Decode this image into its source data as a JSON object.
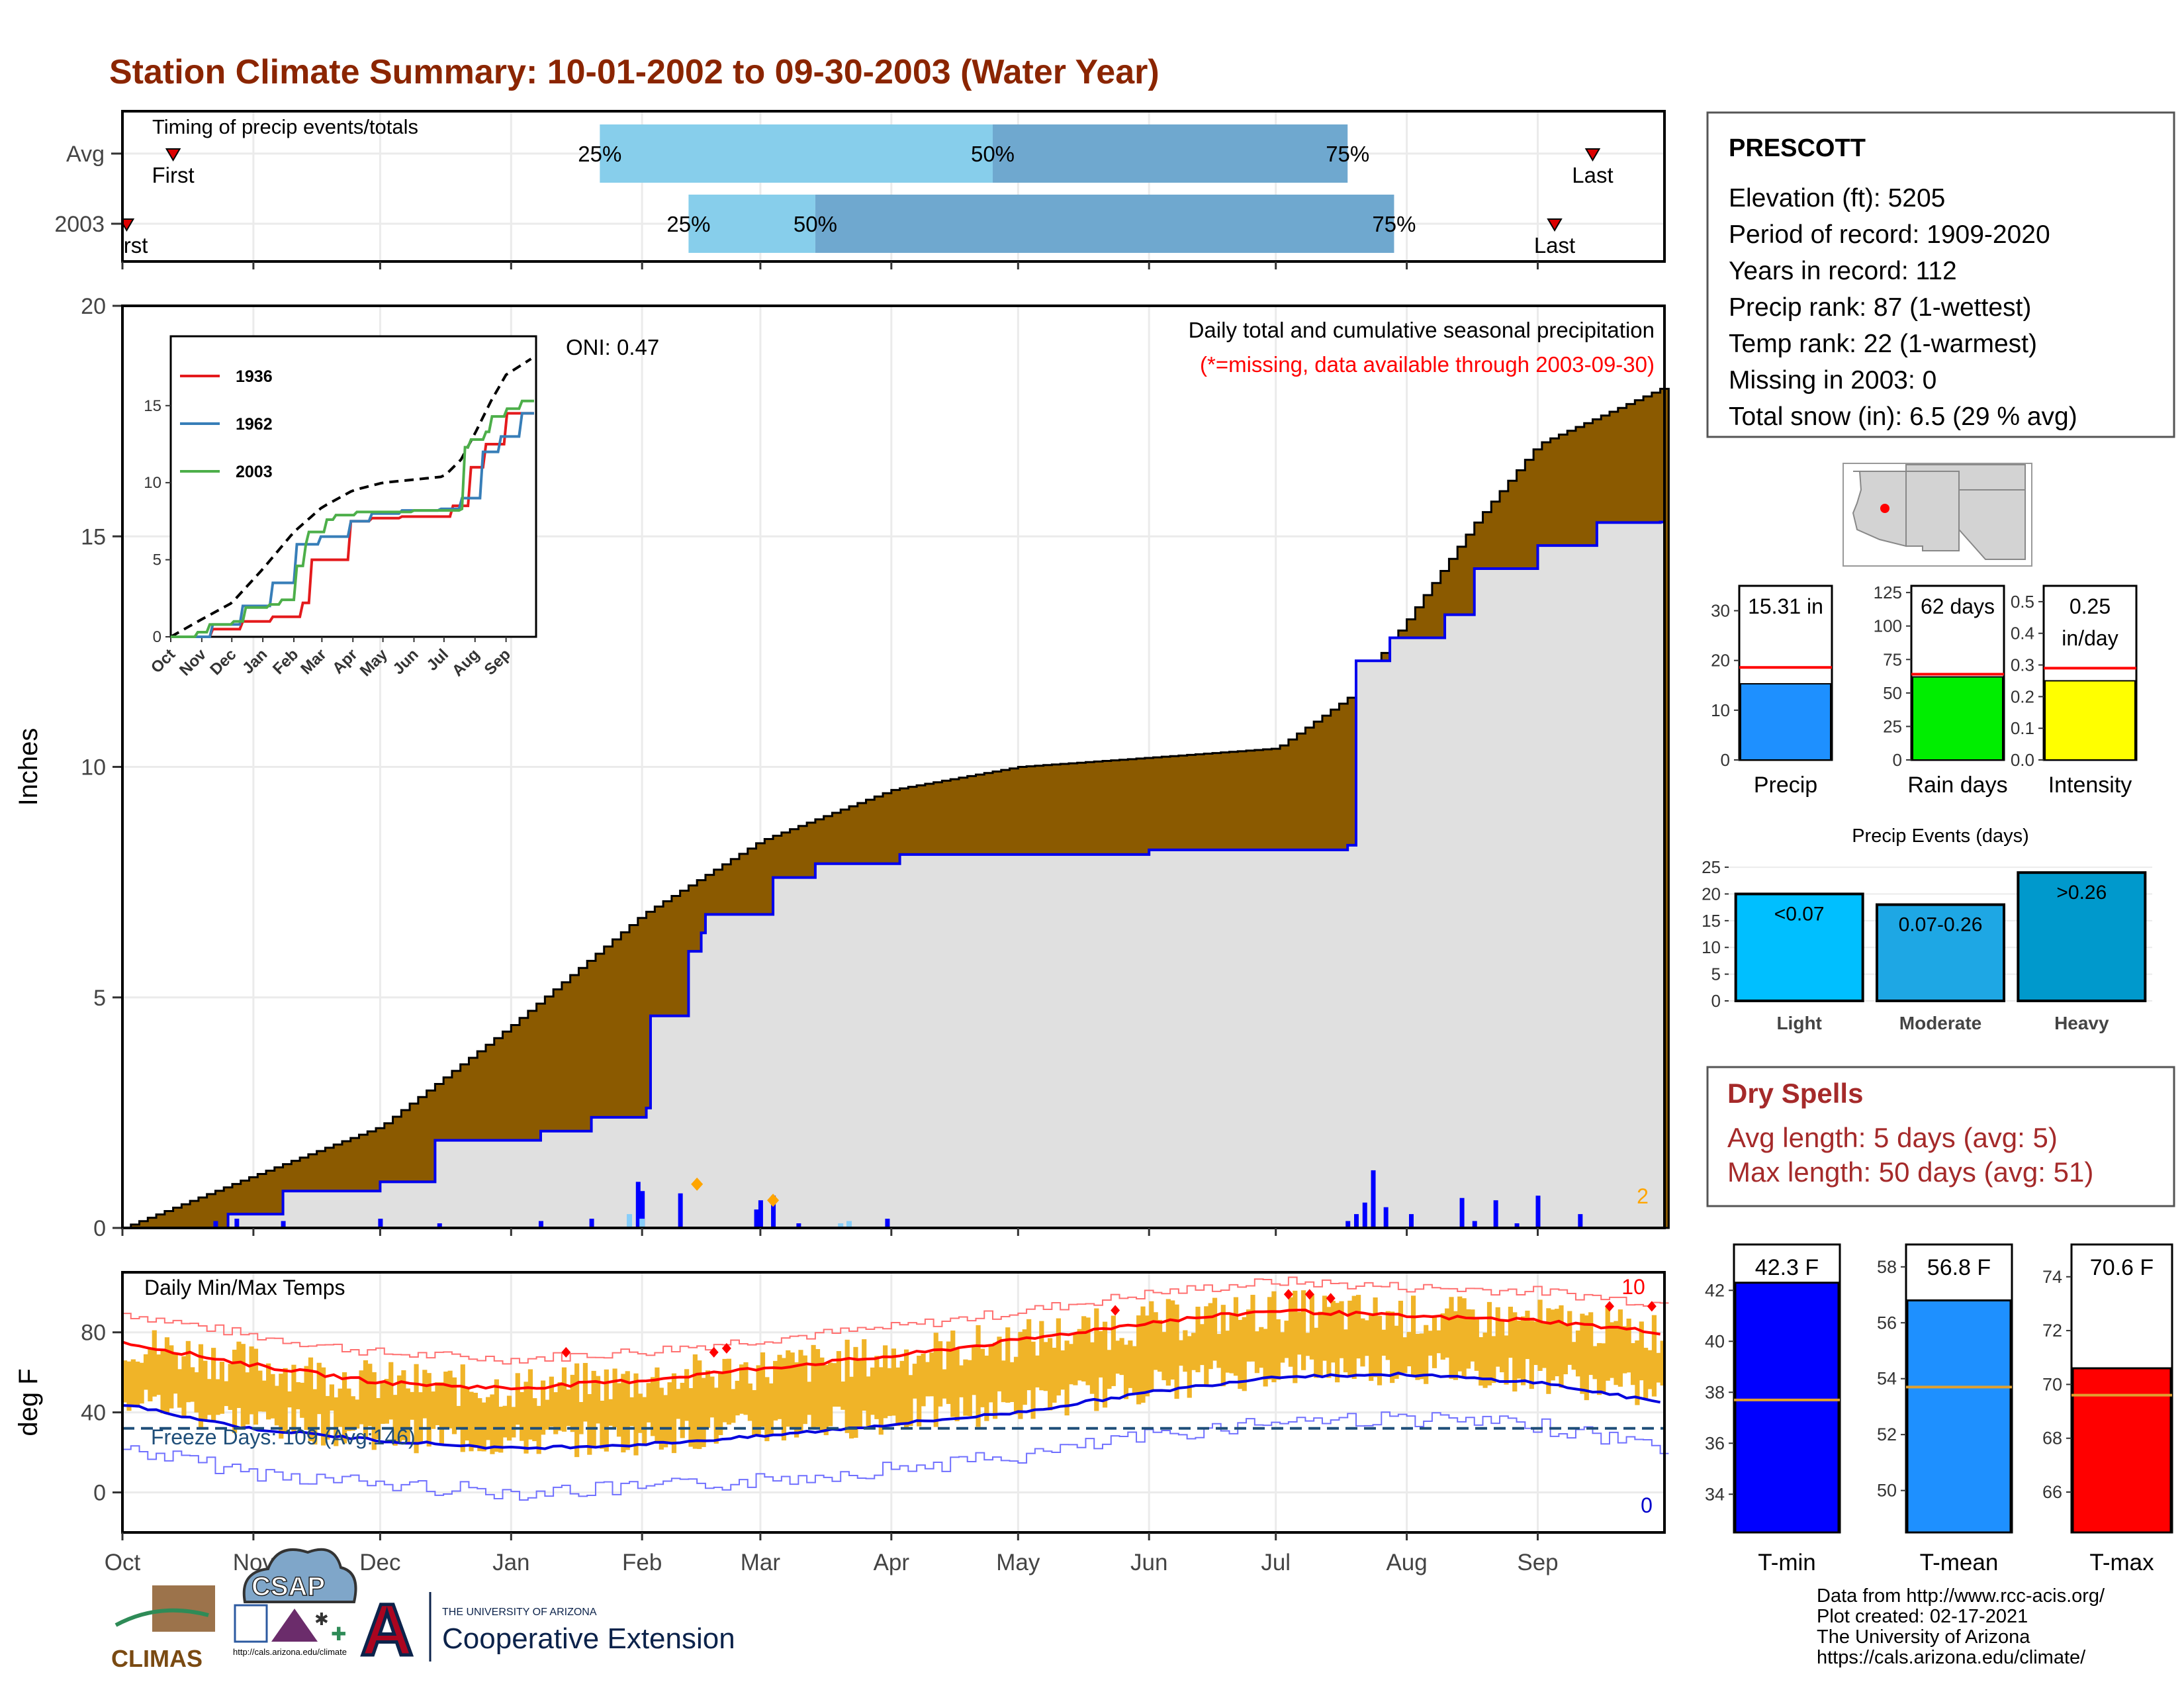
{
  "title": "Station Climate Summary: 10-01-2002 to 09-30-2003 (Water Year)",
  "colors": {
    "title": "#8B2500",
    "brown": "#8B5A00",
    "cumfill": "#E0E0E0",
    "cumline": "#0000EE",
    "light_blue": "#87CEEB",
    "mid_blue": "#6FA8CF",
    "red": "#FF0000",
    "orange": "#FFA500",
    "tempbar": "#F0B428",
    "freeze": "#1F4E79",
    "dryspell": "#A52A2A"
  },
  "months": [
    "Oct",
    "Nov",
    "Dec",
    "Jan",
    "Feb",
    "Mar",
    "Apr",
    "May",
    "Jun",
    "Jul",
    "Aug",
    "Sep"
  ],
  "timing": {
    "label": "Timing of precip events/totals",
    "rows": [
      {
        "name": "Avg",
        "first_label": "First",
        "last_label": "Last",
        "first_day": 12,
        "last_day": 348,
        "p25_day": 113,
        "p50_day": 206,
        "p75_day": 290,
        "p25_label": "25%",
        "p50_label": "50%",
        "p75_label": "75%"
      },
      {
        "name": "2003",
        "first_label": "First",
        "last_label": "Last",
        "first_day": 1,
        "last_day": 339,
        "p25_day": 134,
        "p50_day": 164,
        "p75_day": 301,
        "p25_label": "25%",
        "p50_label": "50%",
        "p75_label": "75%"
      }
    ]
  },
  "precip_panel": {
    "ylabel": "Inches",
    "yticks": [
      0,
      5,
      10,
      15,
      20
    ],
    "ylim": [
      0,
      20
    ],
    "oni": "ONI: 0.47",
    "caption": "Daily total and cumulative seasonal precipitation",
    "missing_note": "(*=missing, data available through 2003-09-30)",
    "corner_count": "2"
  },
  "inset": {
    "yticks": [
      0,
      5,
      10,
      15
    ],
    "xlabels": [
      "Oct",
      "Nov",
      "Dec",
      "Jan",
      "Feb",
      "Mar",
      "Apr",
      "May",
      "Jun",
      "Jul",
      "Aug",
      "Sep"
    ],
    "legend": [
      {
        "name": "1936",
        "color": "#E41A1C"
      },
      {
        "name": "1962",
        "color": "#377EB8"
      },
      {
        "name": "2003",
        "color": "#4DAF4A"
      }
    ]
  },
  "temp_panel": {
    "ylabel": "deg F",
    "label": "Daily Min/Max Temps",
    "yticks": [
      0,
      40,
      80
    ],
    "ylim": [
      -20,
      110
    ],
    "freeze_label": "Freeze Days: 109 (Avg:146)",
    "freeze_line": 32,
    "high_count": "10",
    "low_count": "0"
  },
  "station": {
    "name": "PRESCOTT",
    "lines": [
      "Elevation (ft): 5205",
      "Period of record: 1909-2020",
      "Years in record: 112",
      "Precip rank: 87 (1-wettest)",
      "Temp rank: 22 (1-warmest)",
      "Missing in 2003: 0",
      "Total snow (in): 6.5 (29 % avg)"
    ]
  },
  "mini_bars": [
    {
      "key": "precip",
      "xlabel": "Precip",
      "value": 15.31,
      "avg": 18.6,
      "ticks": [
        0,
        10,
        20,
        30
      ],
      "ymax": 35,
      "label1": "15.31 in",
      "label2": "",
      "color": "#1E90FF"
    },
    {
      "key": "raindays",
      "xlabel": "Rain days",
      "value": 62,
      "avg": 64,
      "ticks": [
        0,
        25,
        50,
        75,
        100,
        125
      ],
      "ymax": 130,
      "label1": "62 days",
      "label2": "",
      "color": "#00EE00"
    },
    {
      "key": "intensity",
      "xlabel": "Intensity",
      "value": 0.25,
      "avg": 0.29,
      "ticks": [
        "0.0",
        "0.1",
        "0.2",
        "0.3",
        "0.4",
        "0.5"
      ],
      "ymax": 0.55,
      "label1": "0.25",
      "label2": "in/day",
      "color": "#FFFF00"
    }
  ],
  "events": {
    "title": "Precip Events (days)",
    "ticks": [
      0,
      5,
      10,
      15,
      20,
      25
    ],
    "ymax": 26,
    "bars": [
      {
        "xlabel": "Light",
        "label": "<0.07",
        "value": 20,
        "color": "#00BFFF"
      },
      {
        "xlabel": "Moderate",
        "label": "0.07-0.26",
        "value": 18,
        "color": "#1EA7E4"
      },
      {
        "xlabel": "Heavy",
        "label": ">0.26",
        "value": 24,
        "color": "#0099CC"
      }
    ]
  },
  "dry_spells": {
    "title": "Dry Spells",
    "avg": "Avg length: 5 days (avg: 5)",
    "max": "Max length: 50 days (avg: 51)"
  },
  "temp_bars": [
    {
      "xlabel": "T-min",
      "value": 42.3,
      "avg": 37.7,
      "label": "42.3 F",
      "ticks": [
        34,
        36,
        38,
        40,
        42
      ],
      "ymin": 32.5,
      "ymax": 43.8,
      "color": "#0000FF"
    },
    {
      "xlabel": "T-mean",
      "value": 56.8,
      "avg": 53.7,
      "label": "56.8 F",
      "ticks": [
        50,
        52,
        54,
        56,
        58
      ],
      "ymin": 48.5,
      "ymax": 58.8,
      "color": "#1E90FF"
    },
    {
      "xlabel": "T-max",
      "value": 70.6,
      "avg": 69.6,
      "label": "70.6 F",
      "ticks": [
        66,
        68,
        70,
        72,
        74
      ],
      "ymin": 64.5,
      "ymax": 75.2,
      "color": "#FF0000"
    }
  ],
  "footer": [
    "Data from http://www.rcc-acis.org/",
    "Plot created: 02-17-2021",
    "The University of Arizona",
    "https://cals.arizona.edu/climate/"
  ],
  "logos": {
    "climas": "CLIMAS",
    "csap": "CSAP",
    "csap_url": "http://cals.arizona.edu/climate",
    "ua_small": "THE UNIVERSITY OF ARIZONA",
    "ua_big": "Cooperative Extension",
    "ua_letter": "A"
  },
  "chart_data": [
    {
      "type": "area",
      "title": "Daily total and cumulative seasonal precipitation",
      "ylabel": "Inches",
      "ylim": [
        0,
        20
      ],
      "x_unit": "day of water year",
      "cumulative_avg": {
        "x": [
          0,
          30,
          61,
          92,
          123,
          151,
          182,
          212,
          243,
          273,
          290,
          304,
          320,
          335,
          364
        ],
        "y": [
          0,
          1.1,
          2.2,
          4.4,
          6.8,
          8.4,
          9.5,
          10.0,
          10.2,
          10.4,
          11.5,
          13.2,
          15.3,
          17.0,
          18.2
        ]
      },
      "cumulative_2003": {
        "x": [
          0,
          25,
          38,
          61,
          74,
          99,
          111,
          124,
          125,
          134,
          137,
          138,
          154,
          164,
          184,
          243,
          273,
          290,
          292,
          300,
          313,
          320,
          335,
          349,
          364
        ],
        "y": [
          0,
          0.3,
          0.8,
          1.0,
          1.9,
          2.1,
          2.4,
          2.6,
          4.6,
          6.0,
          6.4,
          6.8,
          7.6,
          7.9,
          8.1,
          8.2,
          8.2,
          8.3,
          12.3,
          12.8,
          13.3,
          14.3,
          14.8,
          15.3,
          15.31
        ]
      },
      "daily": {
        "x": [
          22,
          27,
          38,
          61,
          75,
          99,
          111,
          122,
          123,
          132,
          150,
          151,
          154,
          160,
          181,
          290,
          292,
          294,
          296,
          299,
          305,
          317,
          320,
          325,
          330,
          335,
          345
        ],
        "y": [
          0.15,
          0.2,
          0.15,
          0.2,
          0.1,
          0.15,
          0.2,
          1.0,
          0.8,
          0.75,
          0.4,
          0.6,
          0.7,
          0.1,
          0.2,
          0.15,
          0.3,
          0.55,
          1.25,
          0.45,
          0.3,
          0.65,
          0.15,
          0.6,
          0.1,
          0.7,
          0.3
        ]
      }
    },
    {
      "type": "line",
      "title": "Daily Min/Max Temps",
      "ylabel": "deg F",
      "ylim": [
        -20,
        110
      ],
      "x_unit": "day of water year",
      "avg_max": {
        "x": [
          0,
          30,
          61,
          92,
          123,
          151,
          182,
          212,
          243,
          273,
          304,
          335,
          364
        ],
        "y": [
          75,
          64,
          55,
          52,
          56,
          62,
          68,
          76,
          85,
          91,
          88,
          86,
          80
        ]
      },
      "avg_min": {
        "x": [
          0,
          30,
          61,
          92,
          123,
          151,
          182,
          212,
          243,
          273,
          304,
          335,
          364
        ],
        "y": [
          44,
          32,
          26,
          22,
          24,
          28,
          34,
          40,
          50,
          58,
          59,
          55,
          45
        ]
      },
      "freeze_line": 32
    }
  ]
}
